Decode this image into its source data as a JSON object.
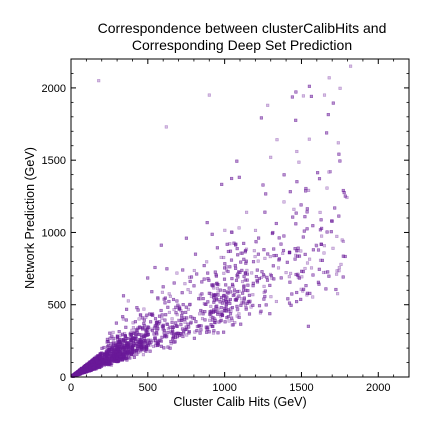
{
  "chart_data": {
    "type": "scatter",
    "title_line1": "Correspondence between clusterCalibHits and",
    "title_line2": "Corresponding Deep Set Prediction",
    "xlabel": "Cluster Calib Hits (GeV)",
    "ylabel": "Network Prediction (GeV)",
    "xlim": [
      0,
      2200
    ],
    "ylim": [
      0,
      2200
    ],
    "xticks": [
      0,
      500,
      1000,
      1500,
      2000
    ],
    "yticks": [
      0,
      500,
      1000,
      1500,
      2000
    ],
    "grid": false,
    "marker_color": "#6a1b9a",
    "highlight_points": [
      {
        "x": 180,
        "y": 2050
      },
      {
        "x": 1280,
        "y": 1880
      },
      {
        "x": 1650,
        "y": 1950
      },
      {
        "x": 1820,
        "y": 2150
      },
      {
        "x": 900,
        "y": 1950
      },
      {
        "x": 620,
        "y": 1730
      },
      {
        "x": 1470,
        "y": 1560
      },
      {
        "x": 1300,
        "y": 1520
      },
      {
        "x": 1740,
        "y": 1620
      }
    ]
  },
  "colors": {
    "background": "#ffffff",
    "axis": "#000000",
    "marker": "#6a1b9a"
  }
}
